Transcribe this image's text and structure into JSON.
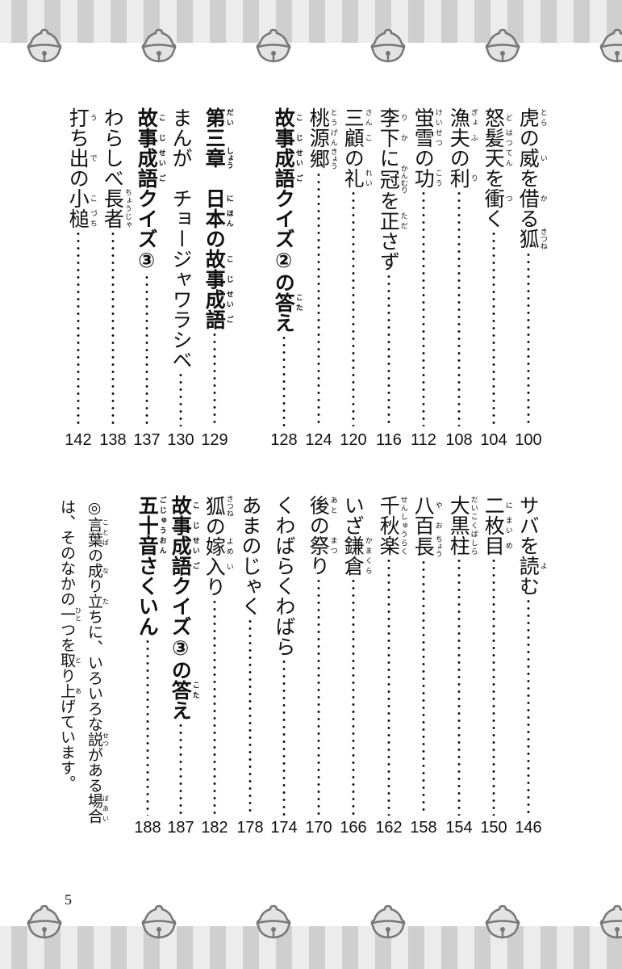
{
  "colors": {
    "stripe_light": "#ececec",
    "stripe_dark": "#cfcfcf",
    "bell_stroke": "#777777",
    "bell_fill": "#e3e3e3",
    "text": "#111111"
  },
  "decoration": {
    "icon": "bell-icon"
  },
  "toc_top": [
    {
      "segments": [
        [
          "虎",
          "とら"
        ],
        "の",
        [
          "威",
          "い"
        ],
        "を",
        [
          "借",
          "か"
        ],
        "る",
        [
          "狐",
          "きつね"
        ]
      ],
      "page": "100"
    },
    {
      "segments": [
        [
          "怒",
          "ど"
        ],
        [
          "髪",
          "はつ"
        ],
        [
          "天",
          "てん"
        ],
        "を",
        [
          "衝",
          "つ"
        ],
        "く"
      ],
      "page": "104"
    },
    {
      "segments": [
        [
          "漁",
          "ぎょ"
        ],
        [
          "夫",
          "ふ"
        ],
        "の",
        [
          "利",
          "り"
        ]
      ],
      "page": "108"
    },
    {
      "segments": [
        [
          "蛍",
          "けい"
        ],
        [
          "雪",
          "せつ"
        ],
        "の",
        [
          "功",
          "こう"
        ]
      ],
      "page": "112"
    },
    {
      "segments": [
        [
          "李",
          "り"
        ],
        [
          "下",
          "か"
        ],
        "に",
        [
          "冠",
          "かんむり"
        ],
        "を",
        [
          "正",
          "ただ"
        ],
        "さず"
      ],
      "page": "116"
    },
    {
      "segments": [
        [
          "三",
          "さん"
        ],
        [
          "顧",
          "こ"
        ],
        "の",
        [
          "礼",
          "れい"
        ]
      ],
      "page": "120"
    },
    {
      "segments": [
        [
          "桃",
          "とう"
        ],
        [
          "源",
          "げん"
        ],
        [
          "郷",
          "きょう"
        ]
      ],
      "page": "124"
    },
    {
      "segments": [
        [
          "故",
          "こ"
        ],
        [
          "事",
          "じ"
        ],
        [
          "成",
          "せい"
        ],
        [
          "語",
          "ご"
        ],
        "クイズ②の",
        [
          "答",
          "こた"
        ],
        "え"
      ],
      "page": "128",
      "bold": true
    },
    {
      "segments": [
        [
          "第",
          "だい"
        ],
        "三",
        [
          "章",
          "しょう"
        ],
        "　",
        [
          "日",
          "に"
        ],
        [
          "本",
          "ほん"
        ],
        "の",
        [
          "故",
          "こ"
        ],
        [
          "事",
          "じ"
        ],
        [
          "成",
          "せい"
        ],
        [
          "語",
          "ご"
        ]
      ],
      "page": "129",
      "bold": true
    },
    {
      "segments": [
        "まんが　チョージャワラシベ"
      ],
      "page": "130"
    },
    {
      "segments": [
        [
          "故",
          "こ"
        ],
        [
          "事",
          "じ"
        ],
        [
          "成",
          "せい"
        ],
        [
          "語",
          "ご"
        ],
        "クイズ③"
      ],
      "page": "137",
      "bold": true
    },
    {
      "segments": [
        "わらしべ",
        [
          "長者",
          "ちょうじゃ"
        ]
      ],
      "page": "138"
    },
    {
      "segments": [
        [
          "打",
          "う"
        ],
        "ち",
        [
          "出",
          "で"
        ],
        "の",
        [
          "小",
          "こ"
        ],
        [
          "槌",
          "づち"
        ]
      ],
      "page": "142"
    }
  ],
  "toc_bottom": [
    {
      "segments": [
        "サバを",
        [
          "読",
          "よ"
        ],
        "む"
      ],
      "page": "146"
    },
    {
      "segments": [
        [
          "二",
          "に"
        ],
        [
          "枚",
          "まい"
        ],
        [
          "目",
          "め"
        ]
      ],
      "page": "150"
    },
    {
      "segments": [
        [
          "大黒柱",
          "だいこくばしら"
        ]
      ],
      "page": "154"
    },
    {
      "segments": [
        [
          "八",
          "や"
        ],
        [
          "百",
          "お"
        ],
        [
          "長",
          "ちょう"
        ]
      ],
      "page": "158"
    },
    {
      "segments": [
        [
          "千秋楽",
          "せんしゅうらく"
        ]
      ],
      "page": "162"
    },
    {
      "segments": [
        "いざ",
        [
          "鎌倉",
          "かまくら"
        ]
      ],
      "page": "166"
    },
    {
      "segments": [
        [
          "後",
          "あと"
        ],
        "の",
        [
          "祭",
          "まつ"
        ],
        "り"
      ],
      "page": "170"
    },
    {
      "segments": [
        "くわばらくわばら"
      ],
      "page": "174"
    },
    {
      "segments": [
        "あまのじゃく"
      ],
      "page": "178"
    },
    {
      "segments": [
        [
          "狐",
          "きつね"
        ],
        "の",
        [
          "嫁",
          "よめ"
        ],
        [
          "入",
          "い"
        ],
        "り"
      ],
      "page": "182"
    },
    {
      "segments": [
        [
          "故",
          "こ"
        ],
        [
          "事",
          "じ"
        ],
        [
          "成",
          "せい"
        ],
        [
          "語",
          "ご"
        ],
        "クイズ③の",
        [
          "答",
          "こた"
        ],
        "え"
      ],
      "page": "187",
      "bold": true
    },
    {
      "segments": [
        [
          "五十音",
          "ごじゅうおん"
        ],
        "さくいん"
      ],
      "page": "188",
      "bold": true
    }
  ],
  "note": {
    "segments": [
      "◎",
      [
        "言葉",
        "ことば"
      ],
      "の",
      [
        "成",
        "な"
      ],
      "り",
      [
        "立",
        "た"
      ],
      "ちに、いろいろな",
      [
        "説",
        "せつ"
      ],
      "がある",
      [
        "場合",
        "ばあい"
      ],
      "は、そのなかの",
      [
        "一",
        "ひと"
      ],
      "つを",
      [
        "取",
        "と"
      ],
      "り",
      [
        "上",
        "あ"
      ],
      "げています。"
    ]
  },
  "page_number": "5"
}
